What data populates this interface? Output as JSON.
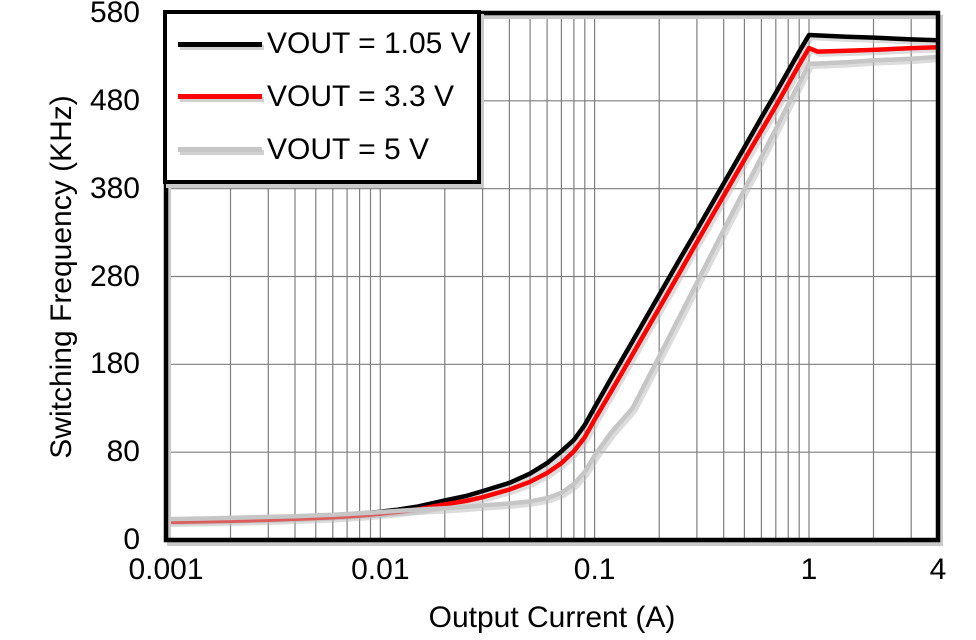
{
  "chart_data": {
    "type": "line",
    "xlabel": "Output Current (A)",
    "ylabel": "Switching Frequency (KHz)",
    "x_scale": "log",
    "x_range": [
      0.001,
      4
    ],
    "x_ticks": [
      0.001,
      0.01,
      0.1,
      1,
      4
    ],
    "x_tick_labels": [
      "0.001",
      "0.01",
      "0.1",
      "1",
      "4"
    ],
    "y_ticks": [
      0,
      80,
      180,
      280,
      380,
      480,
      580
    ],
    "y_tick_labels": [
      "0",
      "80",
      "180",
      "280",
      "380",
      "480",
      "580"
    ],
    "y_axis_note": "ticks evenly spaced on screen; first division spans 0-80 KHz, remaining divisions 100 KHz each",
    "grid": {
      "x_minor_log": true,
      "y_major": true,
      "color": "#7F7F7F"
    },
    "legend_position": "top-left",
    "border_color": "#000000",
    "series": [
      {
        "name": "VOUT = 1.05 V",
        "color": "#000000",
        "points": [
          [
            0.001,
            18
          ],
          [
            0.0015,
            18.8
          ],
          [
            0.002,
            19.3
          ],
          [
            0.003,
            20.3
          ],
          [
            0.004,
            21.2
          ],
          [
            0.005,
            21.9
          ],
          [
            0.006,
            22.6
          ],
          [
            0.007,
            23.3
          ],
          [
            0.008,
            24.1
          ],
          [
            0.009,
            24.9
          ],
          [
            0.01,
            25.8
          ],
          [
            0.012,
            27.6
          ],
          [
            0.015,
            30.5
          ],
          [
            0.02,
            36
          ],
          [
            0.025,
            40
          ],
          [
            0.03,
            44.5
          ],
          [
            0.04,
            52
          ],
          [
            0.05,
            60.5
          ],
          [
            0.06,
            70
          ],
          [
            0.07,
            81
          ],
          [
            0.08,
            94
          ],
          [
            0.09,
            111
          ],
          [
            0.1,
            131
          ],
          [
            0.12,
            165
          ],
          [
            0.15,
            206
          ],
          [
            0.2,
            259
          ],
          [
            0.25,
            300
          ],
          [
            0.3,
            333
          ],
          [
            0.4,
            386
          ],
          [
            0.5,
            427
          ],
          [
            0.6,
            461
          ],
          [
            0.7,
            489
          ],
          [
            0.8,
            514
          ],
          [
            0.9,
            536
          ],
          [
            1,
            555
          ],
          [
            1.5,
            553
          ],
          [
            2,
            552
          ],
          [
            3,
            550
          ],
          [
            4,
            549
          ]
        ]
      },
      {
        "name": "VOUT = 3.3 V",
        "color": "#FF0000",
        "points": [
          [
            0.001,
            16.5
          ],
          [
            0.0015,
            17
          ],
          [
            0.002,
            17.5
          ],
          [
            0.003,
            18.5
          ],
          [
            0.004,
            19.3
          ],
          [
            0.005,
            20
          ],
          [
            0.006,
            20.8
          ],
          [
            0.007,
            21.5
          ],
          [
            0.008,
            22.3
          ],
          [
            0.009,
            23.1
          ],
          [
            0.01,
            24
          ],
          [
            0.012,
            25.6
          ],
          [
            0.015,
            28
          ],
          [
            0.02,
            32.5
          ],
          [
            0.025,
            35.5
          ],
          [
            0.03,
            39
          ],
          [
            0.04,
            46
          ],
          [
            0.05,
            53
          ],
          [
            0.06,
            61
          ],
          [
            0.07,
            70
          ],
          [
            0.08,
            81
          ],
          [
            0.09,
            97
          ],
          [
            0.1,
            117
          ],
          [
            0.12,
            150
          ],
          [
            0.15,
            191
          ],
          [
            0.2,
            244
          ],
          [
            0.25,
            285
          ],
          [
            0.3,
            319
          ],
          [
            0.4,
            372
          ],
          [
            0.5,
            413
          ],
          [
            0.6,
            446
          ],
          [
            0.7,
            474
          ],
          [
            0.8,
            499
          ],
          [
            0.9,
            521
          ],
          [
            1,
            540
          ],
          [
            1.1,
            536
          ],
          [
            1.5,
            537
          ],
          [
            2,
            538
          ],
          [
            3,
            540
          ],
          [
            4,
            541
          ]
        ]
      },
      {
        "name": "VOUT = 5 V",
        "color": "#C6C6C6",
        "points": [
          [
            0.001,
            19
          ],
          [
            0.0015,
            19.6
          ],
          [
            0.002,
            20.1
          ],
          [
            0.003,
            21
          ],
          [
            0.004,
            21.7
          ],
          [
            0.005,
            22.4
          ],
          [
            0.006,
            23
          ],
          [
            0.007,
            23.7
          ],
          [
            0.008,
            24.3
          ],
          [
            0.009,
            24.9
          ],
          [
            0.01,
            25.5
          ],
          [
            0.012,
            26.5
          ],
          [
            0.015,
            27.7
          ],
          [
            0.02,
            29
          ],
          [
            0.025,
            30.2
          ],
          [
            0.03,
            31.5
          ],
          [
            0.04,
            33.2
          ],
          [
            0.05,
            35.2
          ],
          [
            0.06,
            38.2
          ],
          [
            0.07,
            43
          ],
          [
            0.08,
            51
          ],
          [
            0.09,
            62
          ],
          [
            0.1,
            77
          ],
          [
            0.12,
            103
          ],
          [
            0.15,
            130
          ],
          [
            0.2,
            189
          ],
          [
            0.25,
            235
          ],
          [
            0.3,
            273
          ],
          [
            0.4,
            333
          ],
          [
            0.5,
            379
          ],
          [
            0.6,
            416
          ],
          [
            0.7,
            448
          ],
          [
            0.8,
            476
          ],
          [
            0.9,
            500
          ],
          [
            1,
            522
          ],
          [
            1.5,
            524
          ],
          [
            2,
            526
          ],
          [
            3,
            528
          ],
          [
            4,
            530
          ]
        ]
      }
    ]
  }
}
